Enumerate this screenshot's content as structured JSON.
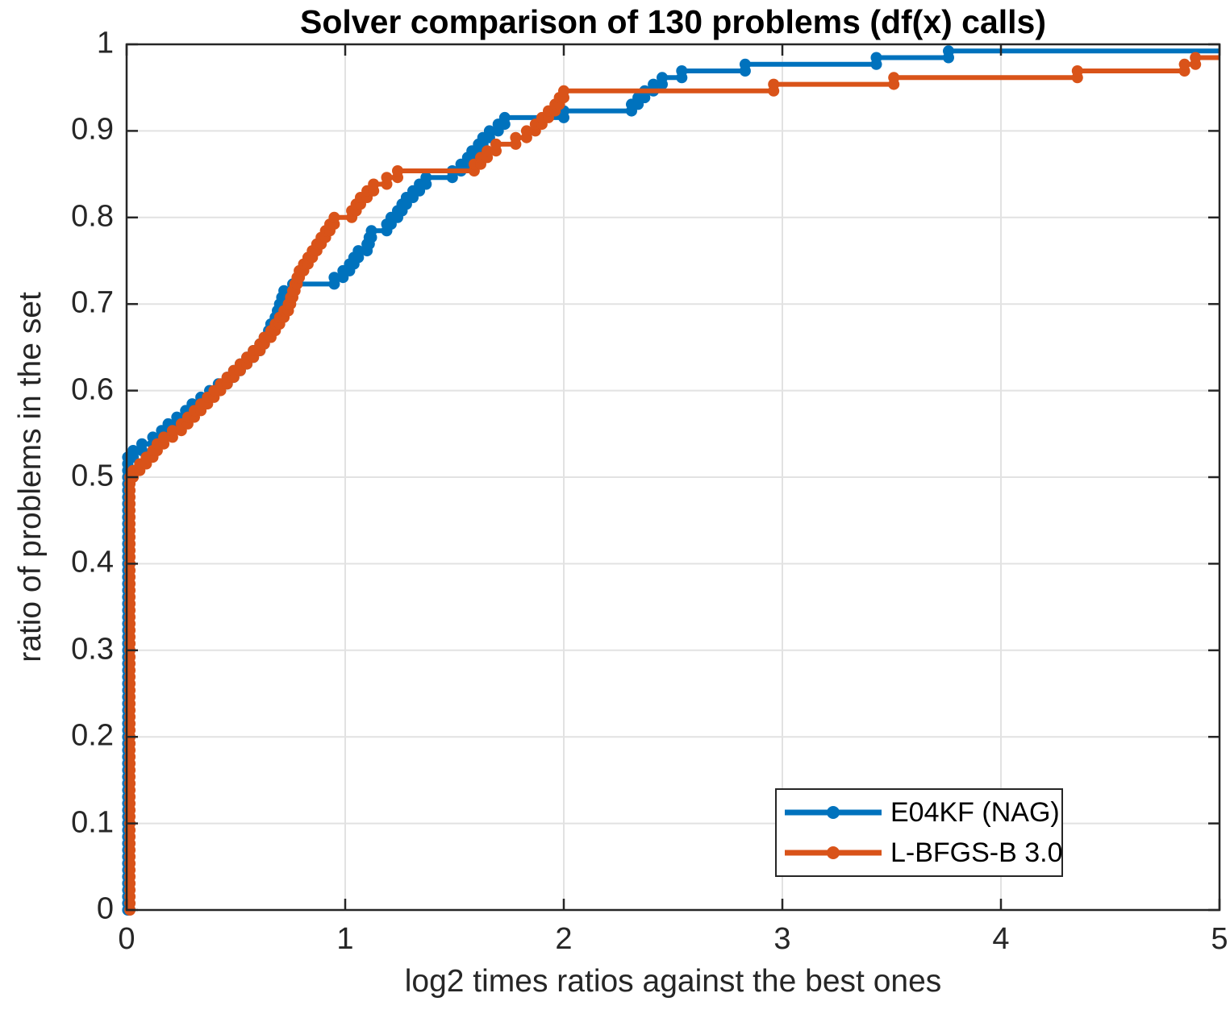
{
  "chart_data": {
    "type": "line",
    "style": "performance-profile-staircase",
    "title": "Solver comparison of 130 problems (df(x) calls)",
    "xlabel": "log2 times ratios against the best ones",
    "ylabel": "ratio of problems in the set",
    "xlim": [
      0,
      5
    ],
    "ylim": [
      0,
      1
    ],
    "xticks": [
      0,
      1,
      2,
      3,
      4,
      5
    ],
    "xtick_labels": [
      "0",
      "1",
      "2",
      "3",
      "4",
      "5"
    ],
    "yticks": [
      0,
      0.1,
      0.2,
      0.3,
      0.4,
      0.5,
      0.6,
      0.7,
      0.8,
      0.9,
      1
    ],
    "ytick_labels": [
      "0",
      "0.1",
      "0.2",
      "0.3",
      "0.4",
      "0.5",
      "0.6",
      "0.7",
      "0.8",
      "0.9",
      "1"
    ],
    "grid": true,
    "n_problems": 130,
    "legend_position": "southeast",
    "colors": {
      "axis": "#262626",
      "grid": "#e2e2e2",
      "background": "#ffffff",
      "series_blue": "#0072BD",
      "series_orange": "#D95319"
    },
    "series": [
      {
        "name": "E04KF (NAG)",
        "color": "#0072BD",
        "x_start": 0.005,
        "start_count": 68,
        "start_ratio": 0.5231,
        "step_x": [
          0.03,
          0.07,
          0.12,
          0.16,
          0.19,
          0.23,
          0.27,
          0.3,
          0.34,
          0.38,
          0.42,
          0.46,
          0.49,
          0.52,
          0.55,
          0.58,
          0.61,
          0.63,
          0.65,
          0.66,
          0.68,
          0.69,
          0.7,
          0.71,
          0.72,
          0.76,
          0.95,
          0.99,
          1.02,
          1.04,
          1.06,
          1.1,
          1.11,
          1.12,
          1.19,
          1.21,
          1.24,
          1.26,
          1.28,
          1.31,
          1.34,
          1.37,
          1.49,
          1.53,
          1.56,
          1.58,
          1.61,
          1.63,
          1.66,
          1.7,
          1.73,
          2.0,
          2.31,
          2.34,
          2.37,
          2.41,
          2.45,
          2.54,
          2.83,
          3.43,
          3.76
        ],
        "final_ratio": 0.9923,
        "x_end": 5
      },
      {
        "name": "L-BFGS-B 3.0",
        "color": "#D95319",
        "x_start": 0.015,
        "start_count": 65,
        "start_ratio": 0.5,
        "step_x": [
          0.03,
          0.06,
          0.09,
          0.12,
          0.14,
          0.17,
          0.21,
          0.25,
          0.28,
          0.31,
          0.34,
          0.37,
          0.4,
          0.43,
          0.46,
          0.49,
          0.52,
          0.55,
          0.58,
          0.61,
          0.63,
          0.66,
          0.68,
          0.7,
          0.72,
          0.74,
          0.75,
          0.76,
          0.77,
          0.78,
          0.79,
          0.81,
          0.83,
          0.85,
          0.87,
          0.89,
          0.91,
          0.93,
          0.95,
          1.03,
          1.05,
          1.07,
          1.1,
          1.13,
          1.19,
          1.24,
          1.59,
          1.62,
          1.65,
          1.69,
          1.78,
          1.83,
          1.87,
          1.9,
          1.93,
          1.96,
          1.98,
          2.0,
          2.96,
          3.51,
          4.35,
          4.84,
          4.89
        ],
        "final_ratio": 0.9846,
        "x_end": 5
      }
    ]
  }
}
